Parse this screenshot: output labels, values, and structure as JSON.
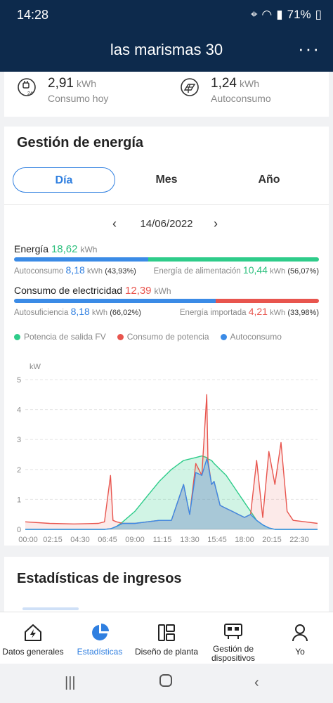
{
  "status": {
    "time": "14:28",
    "battery": "71%"
  },
  "header": {
    "title": "las marismas 30",
    "more": "⋮"
  },
  "today": {
    "consumption": {
      "value": "2,91",
      "unit": "kWh",
      "label": "Consumo hoy"
    },
    "self_consumption": {
      "value": "1,24",
      "unit": "kWh",
      "label": "Autoconsumo"
    }
  },
  "energy_management": {
    "title": "Gestión de energía",
    "tabs": [
      "Día",
      "Mes",
      "Año"
    ],
    "active_tab": 0,
    "date": "14/06/2022",
    "energy": {
      "label": "Energía",
      "value": "18,62",
      "unit": "kWh",
      "self_label": "Autoconsumo",
      "self_value": "8,18",
      "self_unit": "kWh",
      "self_pct": "(43,93%)",
      "feed_label": "Energía de alimentación",
      "feed_value": "10,44",
      "feed_unit": "kWh",
      "feed_pct": "(56,07%)",
      "self_fraction": 0.4393
    },
    "consumption": {
      "label": "Consumo de electricidad",
      "value": "12,39",
      "unit": "kWh",
      "suff_label": "Autosuficiencia",
      "suff_value": "8,18",
      "suff_unit": "kWh",
      "suff_pct": "(66,02%)",
      "import_label": "Energía importada",
      "import_value": "4,21",
      "import_unit": "kWh",
      "import_pct": "(33,98%)",
      "suff_fraction": 0.6602
    },
    "legend": [
      "Potencia de salida FV",
      "Consumo de potencia",
      "Autoconsumo"
    ],
    "colors": {
      "pv": "#2ecc8a",
      "consumption": "#e8554e",
      "self": "#3b8be6",
      "green_text": "#2bbf7c",
      "blue_text": "#2f7fe0",
      "red_text": "#e8554e"
    }
  },
  "chart_data": {
    "type": "area",
    "ylabel": "kW",
    "ylim": [
      0,
      5
    ],
    "yticks": [
      "0",
      "1",
      "2",
      "3",
      "4",
      "5"
    ],
    "xticks": [
      "00:00",
      "02:15",
      "04:30",
      "06:45",
      "09:00",
      "11:15",
      "13:30",
      "15:45",
      "18:00",
      "20:15",
      "22:30"
    ],
    "x_hours": [
      0,
      2,
      4,
      6,
      6.5,
      7,
      7.2,
      7.5,
      8,
      9,
      10,
      11,
      12,
      13,
      13.5,
      14,
      14.5,
      14.9,
      15,
      15.3,
      15.5,
      16,
      16.5,
      17,
      17.5,
      18,
      18.5,
      19,
      19.5,
      20,
      20.5,
      21,
      21.5,
      22,
      23,
      24
    ],
    "series": [
      {
        "name": "Potencia de salida FV",
        "values": [
          0,
          0,
          0,
          0,
          0,
          0.02,
          0.05,
          0.1,
          0.25,
          0.6,
          1.1,
          1.6,
          2.0,
          2.3,
          2.35,
          2.4,
          2.45,
          2.4,
          2.35,
          2.3,
          2.2,
          2.0,
          1.8,
          1.5,
          1.2,
          0.9,
          0.6,
          0.3,
          0.15,
          0.05,
          0,
          0,
          0,
          0,
          0,
          0
        ]
      },
      {
        "name": "Consumo de potencia",
        "values": [
          0.25,
          0.2,
          0.18,
          0.2,
          0.25,
          1.8,
          0.3,
          0.25,
          0.2,
          0.2,
          0.25,
          0.3,
          0.3,
          1.5,
          0.5,
          2.2,
          1.8,
          4.5,
          2.3,
          1.5,
          1.6,
          0.8,
          0.7,
          0.6,
          0.5,
          0.4,
          0.5,
          2.3,
          0.4,
          2.6,
          1.5,
          2.9,
          0.6,
          0.3,
          0.25,
          0.2
        ]
      },
      {
        "name": "Autoconsumo",
        "values": [
          0,
          0,
          0,
          0,
          0,
          0.02,
          0.05,
          0.1,
          0.2,
          0.2,
          0.25,
          0.3,
          0.3,
          1.5,
          0.5,
          1.9,
          1.8,
          2.35,
          2.2,
          1.5,
          1.6,
          0.8,
          0.7,
          0.6,
          0.5,
          0.4,
          0.5,
          0.3,
          0.15,
          0.05,
          0,
          0,
          0,
          0,
          0,
          0
        ]
      }
    ]
  },
  "income": {
    "title": "Estadísticas de ingresos"
  },
  "bottom_nav": [
    {
      "label": "Datos generales",
      "icon": "house-bolt-icon"
    },
    {
      "label": "Estadísticas",
      "icon": "pie-chart-icon"
    },
    {
      "label": "Diseño de planta",
      "icon": "layout-icon"
    },
    {
      "label": "Gestión de dispositivos",
      "icon": "device-icon"
    },
    {
      "label": "Yo",
      "icon": "person-icon"
    }
  ]
}
